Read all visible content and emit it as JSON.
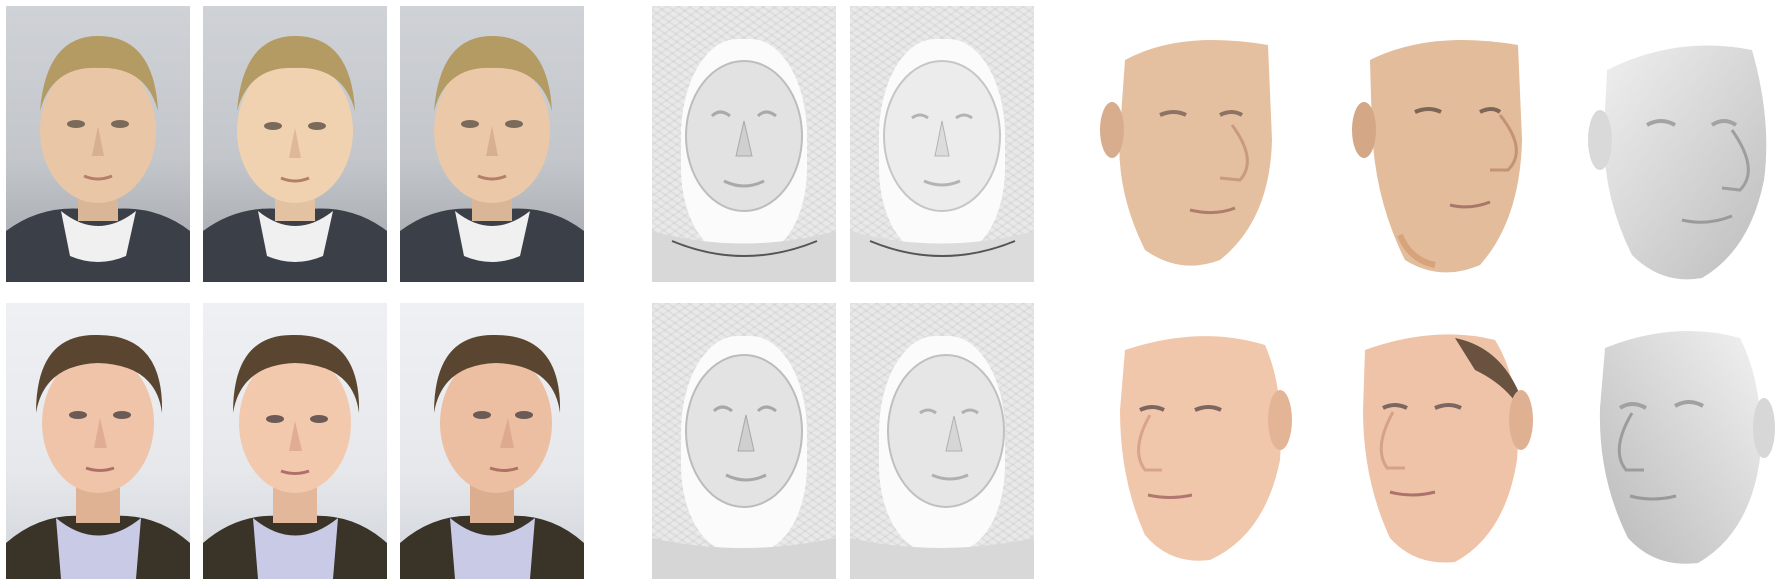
{
  "figure": {
    "columns": [
      {
        "key": "input-photos",
        "count": 3
      },
      {
        "key": "depth-maps",
        "count": 2
      },
      {
        "key": "textured-renders",
        "count": 2
      },
      {
        "key": "shape-render",
        "count": 1
      }
    ],
    "rows": [
      {
        "subject": "subject-1",
        "skin": "#e9c7a6",
        "hair": "#b49a63",
        "clothing": "#3b3f47",
        "shirt": "#f0f0f0"
      },
      {
        "subject": "subject-2",
        "skin": "#efc4a8",
        "hair": "#5a4630",
        "clothing": "#3a3328",
        "shirt": "#c9cbe6"
      }
    ],
    "colors": {
      "background": "#ffffff",
      "depth_gray": "#e6e6e6",
      "shape_gray": "#d6d6d6"
    }
  }
}
